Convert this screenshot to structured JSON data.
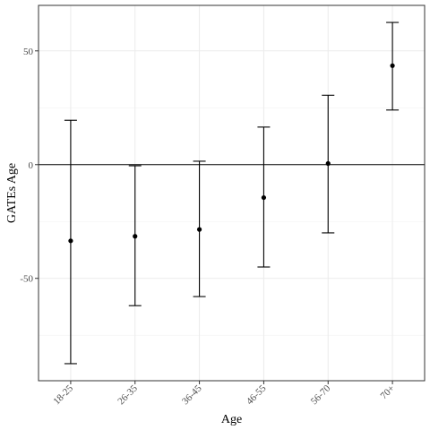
{
  "chart_data": {
    "type": "scatter",
    "title": "",
    "xlabel": "Age",
    "ylabel": "GATEs Age",
    "categories": [
      "18-25",
      "26-35",
      "36-45",
      "46-55",
      "56-70",
      "70+"
    ],
    "estimates": [
      -33.5,
      -31.5,
      -28.5,
      -14.5,
      0.5,
      43.5
    ],
    "ci_lower": [
      -87.5,
      -62.0,
      -58.0,
      -45.0,
      -30.0,
      24.0
    ],
    "ci_upper": [
      19.5,
      -0.5,
      1.5,
      16.5,
      30.5,
      62.5
    ],
    "y_ticks": [
      -50,
      0,
      50
    ],
    "ylim": [
      -95,
      70
    ],
    "reference_line": 0,
    "grid": true,
    "legend": "none"
  }
}
